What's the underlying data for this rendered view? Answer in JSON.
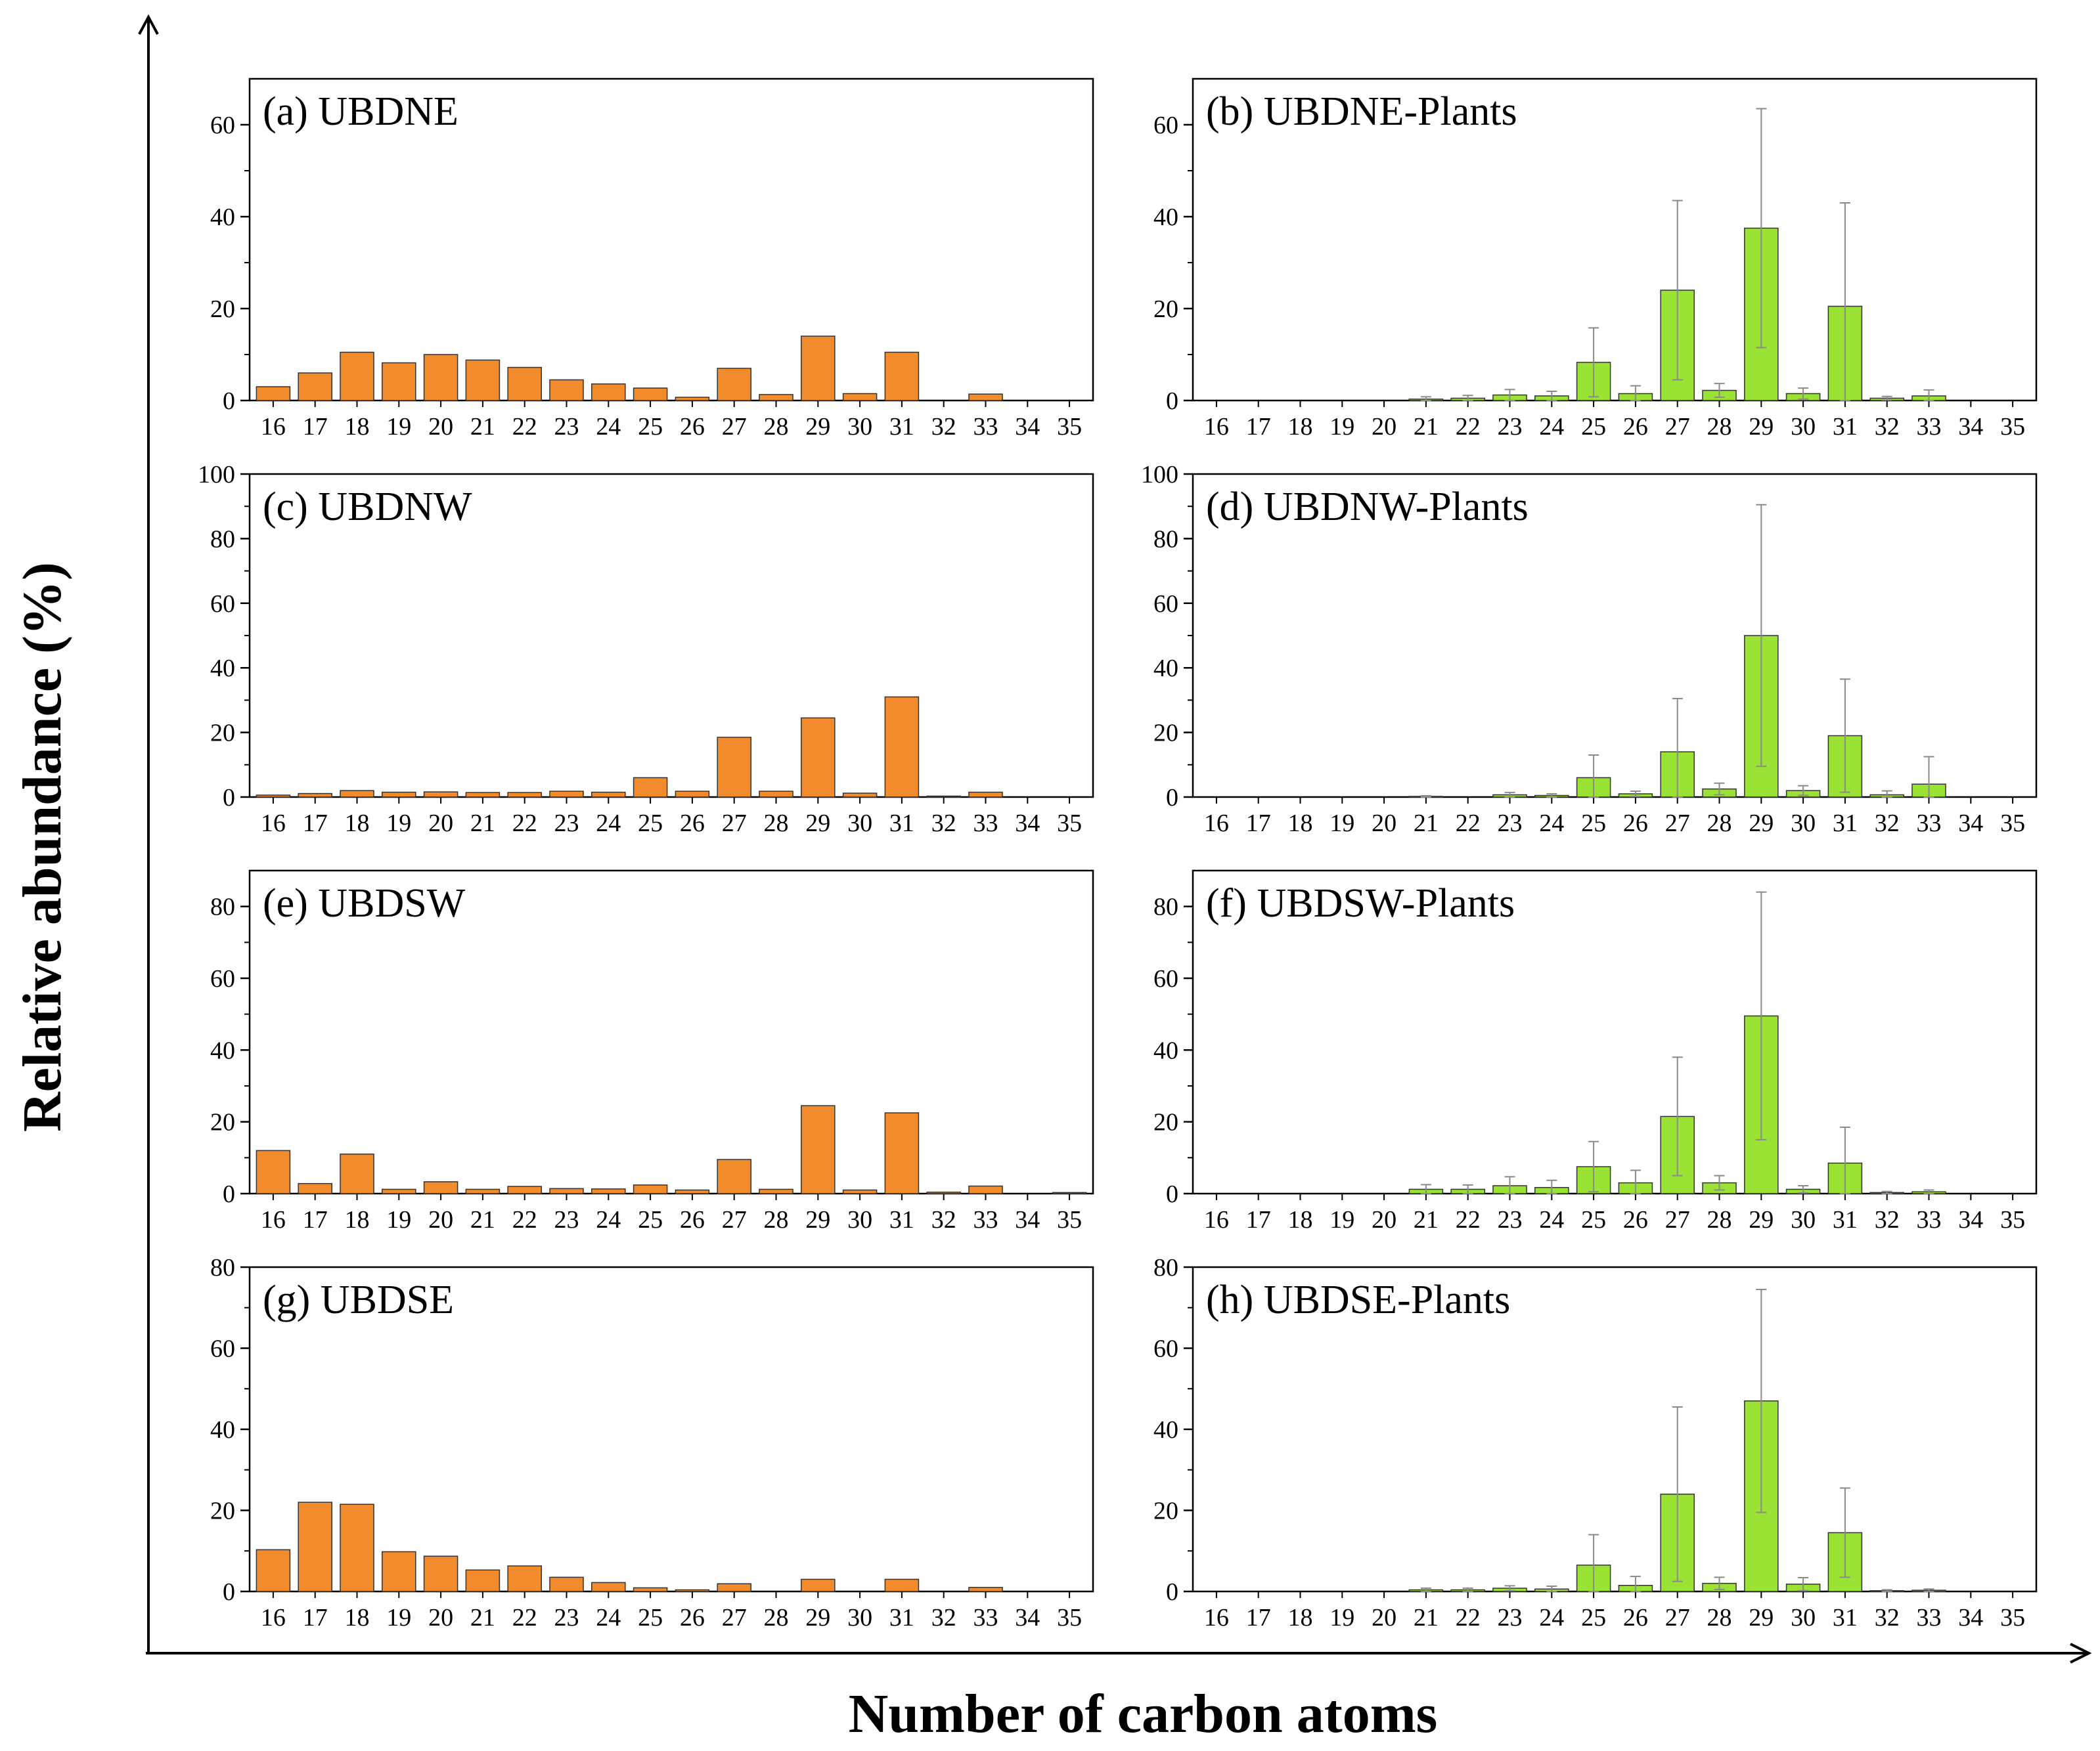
{
  "figure": {
    "y_axis_title": "Relative abundance (%)",
    "x_axis_title": "Number of carbon atoms"
  },
  "colors": {
    "sample_bar": "#F28B2C",
    "plant_bar": "#9AE234",
    "bar_stroke": "#333333",
    "error_bar": "#8a8a8a",
    "axis": "#000000"
  },
  "chart_data": [
    {
      "id": "a",
      "type": "bar",
      "title": "(a) UBDNE",
      "series_kind": "sample",
      "categories": [
        "16",
        "17",
        "18",
        "19",
        "20",
        "21",
        "22",
        "23",
        "24",
        "25",
        "26",
        "27",
        "28",
        "29",
        "30",
        "31",
        "32",
        "33",
        "34",
        "35"
      ],
      "values": [
        3,
        6,
        10.5,
        8.2,
        10,
        8.8,
        7.2,
        4.5,
        3.6,
        2.7,
        0.7,
        7,
        1.3,
        14,
        1.5,
        10.5,
        0,
        1.4,
        0,
        0
      ],
      "ylim": [
        0,
        70
      ],
      "yticks": [
        "0",
        "20",
        "40",
        "60"
      ],
      "ytick_values": [
        0,
        20,
        40,
        60
      ],
      "xlabel": "",
      "ylabel": "",
      "grid": false
    },
    {
      "id": "b",
      "type": "bar",
      "title": "(b) UBDNE-Plants",
      "series_kind": "plant",
      "categories": [
        "16",
        "17",
        "18",
        "19",
        "20",
        "21",
        "22",
        "23",
        "24",
        "25",
        "26",
        "27",
        "28",
        "29",
        "30",
        "31",
        "32",
        "33",
        "34",
        "35"
      ],
      "values": [
        0,
        0,
        0,
        0,
        0,
        0.3,
        0.5,
        1.2,
        1,
        8.3,
        1.5,
        24,
        2.2,
        37.5,
        1.5,
        20.5,
        0.5,
        1,
        0,
        0
      ],
      "errors": [
        0,
        0,
        0,
        0,
        0,
        0.5,
        0.6,
        1.2,
        1,
        7.5,
        1.7,
        19.5,
        1.5,
        26,
        1.2,
        22.5,
        0.4,
        1.3,
        0,
        0
      ],
      "ylim": [
        0,
        70
      ],
      "yticks": [
        "0",
        "20",
        "40",
        "60"
      ],
      "ytick_values": [
        0,
        20,
        40,
        60
      ],
      "xlabel": "",
      "ylabel": "",
      "grid": false
    },
    {
      "id": "c",
      "type": "bar",
      "title": "(c) UBDNW",
      "series_kind": "sample",
      "categories": [
        "16",
        "17",
        "18",
        "19",
        "20",
        "21",
        "22",
        "23",
        "24",
        "25",
        "26",
        "27",
        "28",
        "29",
        "30",
        "31",
        "32",
        "33",
        "34",
        "35"
      ],
      "values": [
        0.6,
        1.1,
        2,
        1.5,
        1.6,
        1.4,
        1.4,
        1.8,
        1.5,
        6,
        1.8,
        18.5,
        1.8,
        24.5,
        1.2,
        31,
        0.3,
        1.5,
        0,
        0
      ],
      "ylim": [
        0,
        100
      ],
      "yticks": [
        "0",
        "20",
        "40",
        "60",
        "80",
        "100"
      ],
      "ytick_values": [
        0,
        20,
        40,
        60,
        80,
        100
      ],
      "xlabel": "",
      "ylabel": "",
      "grid": false
    },
    {
      "id": "d",
      "type": "bar",
      "title": "(d) UBDNW-Plants",
      "series_kind": "plant",
      "categories": [
        "16",
        "17",
        "18",
        "19",
        "20",
        "21",
        "22",
        "23",
        "24",
        "25",
        "26",
        "27",
        "28",
        "29",
        "30",
        "31",
        "32",
        "33",
        "34",
        "35"
      ],
      "values": [
        0,
        0,
        0,
        0,
        0,
        0.2,
        0,
        0.7,
        0.5,
        6,
        1,
        14,
        2.5,
        50,
        2,
        19,
        0.7,
        4,
        0,
        0
      ],
      "errors": [
        0,
        0,
        0,
        0,
        0,
        0.2,
        0,
        0.7,
        0.5,
        7,
        0.8,
        16.5,
        1.8,
        40.5,
        1.5,
        17.5,
        1.2,
        8.5,
        0,
        0
      ],
      "ylim": [
        0,
        100
      ],
      "yticks": [
        "0",
        "20",
        "40",
        "60",
        "80",
        "100"
      ],
      "ytick_values": [
        0,
        20,
        40,
        60,
        80,
        100
      ],
      "xlabel": "",
      "ylabel": "",
      "grid": false
    },
    {
      "id": "e",
      "type": "bar",
      "title": "(e) UBDSW",
      "series_kind": "sample",
      "categories": [
        "16",
        "17",
        "18",
        "19",
        "20",
        "21",
        "22",
        "23",
        "24",
        "25",
        "26",
        "27",
        "28",
        "29",
        "30",
        "31",
        "32",
        "33",
        "34",
        "35"
      ],
      "values": [
        12,
        2.8,
        11,
        1.2,
        3.3,
        1.2,
        2,
        1.4,
        1.3,
        2.4,
        1,
        9.5,
        1.2,
        24.5,
        1,
        22.5,
        0.4,
        2.1,
        0,
        0.3
      ],
      "ylim": [
        0,
        90
      ],
      "yticks": [
        "0",
        "20",
        "40",
        "60",
        "80"
      ],
      "ytick_values": [
        0,
        20,
        40,
        60,
        80
      ],
      "xlabel": "",
      "ylabel": "",
      "grid": false
    },
    {
      "id": "f",
      "type": "bar",
      "title": "(f) UBDSW-Plants",
      "series_kind": "plant",
      "categories": [
        "16",
        "17",
        "18",
        "19",
        "20",
        "21",
        "22",
        "23",
        "24",
        "25",
        "26",
        "27",
        "28",
        "29",
        "30",
        "31",
        "32",
        "33",
        "34",
        "35"
      ],
      "values": [
        0,
        0,
        0,
        0,
        0,
        1.2,
        1.2,
        2.2,
        1.7,
        7.5,
        3,
        21.5,
        3,
        49.5,
        1.2,
        8.5,
        0.3,
        0.5,
        0,
        0
      ],
      "errors": [
        0,
        0,
        0,
        0,
        0,
        1.3,
        1.2,
        2.5,
        2,
        7,
        3.5,
        16.5,
        2,
        34.5,
        1,
        10,
        0.3,
        0.5,
        0,
        0
      ],
      "ylim": [
        0,
        90
      ],
      "yticks": [
        "0",
        "20",
        "40",
        "60",
        "80"
      ],
      "ytick_values": [
        0,
        20,
        40,
        60,
        80
      ],
      "xlabel": "",
      "ylabel": "",
      "grid": false
    },
    {
      "id": "g",
      "type": "bar",
      "title": "(g) UBDSE",
      "series_kind": "sample",
      "categories": [
        "16",
        "17",
        "18",
        "19",
        "20",
        "21",
        "22",
        "23",
        "24",
        "25",
        "26",
        "27",
        "28",
        "29",
        "30",
        "31",
        "32",
        "33",
        "34",
        "35"
      ],
      "values": [
        10.3,
        22,
        21.5,
        9.8,
        8.7,
        5.3,
        6.3,
        3.5,
        2.2,
        0.9,
        0.4,
        1.9,
        0,
        3,
        0,
        3,
        0,
        1,
        0,
        0
      ],
      "ylim": [
        0,
        80
      ],
      "yticks": [
        "0",
        "20",
        "40",
        "60",
        "80"
      ],
      "ytick_values": [
        0,
        20,
        40,
        60,
        80
      ],
      "xlabel": "",
      "ylabel": "",
      "grid": false
    },
    {
      "id": "h",
      "type": "bar",
      "title": "(h) UBDSE-Plants",
      "series_kind": "plant",
      "categories": [
        "16",
        "17",
        "18",
        "19",
        "20",
        "21",
        "22",
        "23",
        "24",
        "25",
        "26",
        "27",
        "28",
        "29",
        "30",
        "31",
        "32",
        "33",
        "34",
        "35"
      ],
      "values": [
        0,
        0,
        0,
        0,
        0,
        0.4,
        0.4,
        0.8,
        0.6,
        6.5,
        1.5,
        24,
        2,
        47,
        1.8,
        14.5,
        0.2,
        0.3,
        0,
        0
      ],
      "errors": [
        0,
        0,
        0,
        0,
        0,
        0.4,
        0.4,
        0.6,
        0.7,
        7.5,
        2.2,
        21.5,
        1.5,
        27.5,
        1.6,
        11,
        0.2,
        0.3,
        0,
        0
      ],
      "ylim": [
        0,
        80
      ],
      "yticks": [
        "0",
        "20",
        "40",
        "60",
        "80"
      ],
      "ytick_values": [
        0,
        20,
        40,
        60,
        80
      ],
      "xlabel": "",
      "ylabel": "",
      "grid": false
    }
  ]
}
